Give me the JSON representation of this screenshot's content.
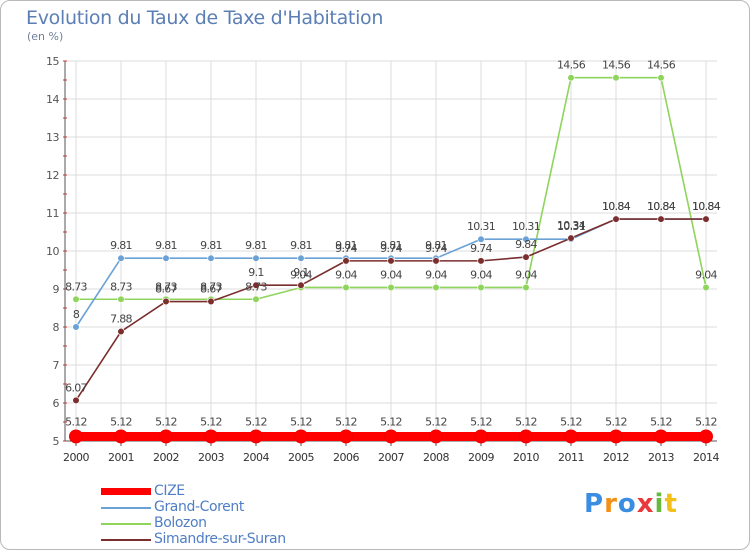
{
  "title": "Evolution du Taux de Taxe d'Habitation",
  "unit_label": "(en %)",
  "brand": "Proxiti",
  "chart_data": {
    "type": "line",
    "title": "Evolution du Taux de Taxe d'Habitation",
    "ylabel": "(en %)",
    "xlabel": "",
    "ylim": [
      5,
      15
    ],
    "yticks": [
      5,
      6,
      7,
      8,
      9,
      10,
      11,
      12,
      13,
      14,
      15
    ],
    "x": [
      2000,
      2001,
      2002,
      2003,
      2004,
      2005,
      2006,
      2007,
      2008,
      2009,
      2010,
      2011,
      2012,
      2013,
      2014
    ],
    "grid": true,
    "legend_position": "bottom-left",
    "series": [
      {
        "name": "CIZE",
        "color": "#ff0000",
        "values": [
          5.12,
          5.12,
          5.12,
          5.12,
          5.12,
          5.12,
          5.12,
          5.12,
          5.12,
          5.12,
          5.12,
          5.12,
          5.12,
          5.12,
          5.12
        ],
        "labels": [
          "5.12",
          "5.12",
          "5.12",
          "5.12",
          "5.12",
          "5.12",
          "5.12",
          "5.12",
          "5.12",
          "5.12",
          "5.12",
          "5.12",
          "5.12",
          "5.12",
          "5.12"
        ]
      },
      {
        "name": "Grand-Corent",
        "color": "#6aa2d6",
        "values": [
          8,
          9.81,
          9.81,
          9.81,
          9.81,
          9.81,
          9.81,
          9.81,
          9.81,
          10.31,
          10.31,
          10.31,
          10.84,
          10.84,
          10.84
        ],
        "labels": [
          "8",
          "9.81",
          "9.81",
          "9.81",
          "9.81",
          "9.81",
          "9.81",
          "9.81",
          "9.81",
          "10.31",
          "10.31",
          "10.31",
          "10.84",
          "10.84",
          "10.84"
        ]
      },
      {
        "name": "Bolozon",
        "color": "#8fd45c",
        "values": [
          8.73,
          8.73,
          8.73,
          8.73,
          8.73,
          9.04,
          9.04,
          9.04,
          9.04,
          9.04,
          9.04,
          14.56,
          14.56,
          14.56,
          9.04
        ],
        "labels": [
          "8.73",
          "8.73",
          "8.73",
          "8.73",
          "8.73",
          "9.04",
          "9.04",
          "9.04",
          "9.04",
          "9.04",
          "9.04",
          "14.56",
          "14.56",
          "14.56",
          "9.04"
        ]
      },
      {
        "name": "Simandre-sur-Suran",
        "color": "#7a2e2e",
        "values": [
          6.07,
          7.88,
          8.67,
          8.67,
          9.1,
          9.1,
          9.74,
          9.74,
          9.74,
          9.74,
          9.84,
          10.34,
          10.84,
          10.84,
          10.84
        ],
        "labels": [
          "6.07",
          "7.88",
          "8.67",
          "8.67",
          "9.1",
          "9.1",
          "9.74",
          "9.74",
          "9.74",
          "9.74",
          "9.84",
          "10.34",
          "10.84",
          "10.84",
          "10.84"
        ]
      }
    ]
  }
}
